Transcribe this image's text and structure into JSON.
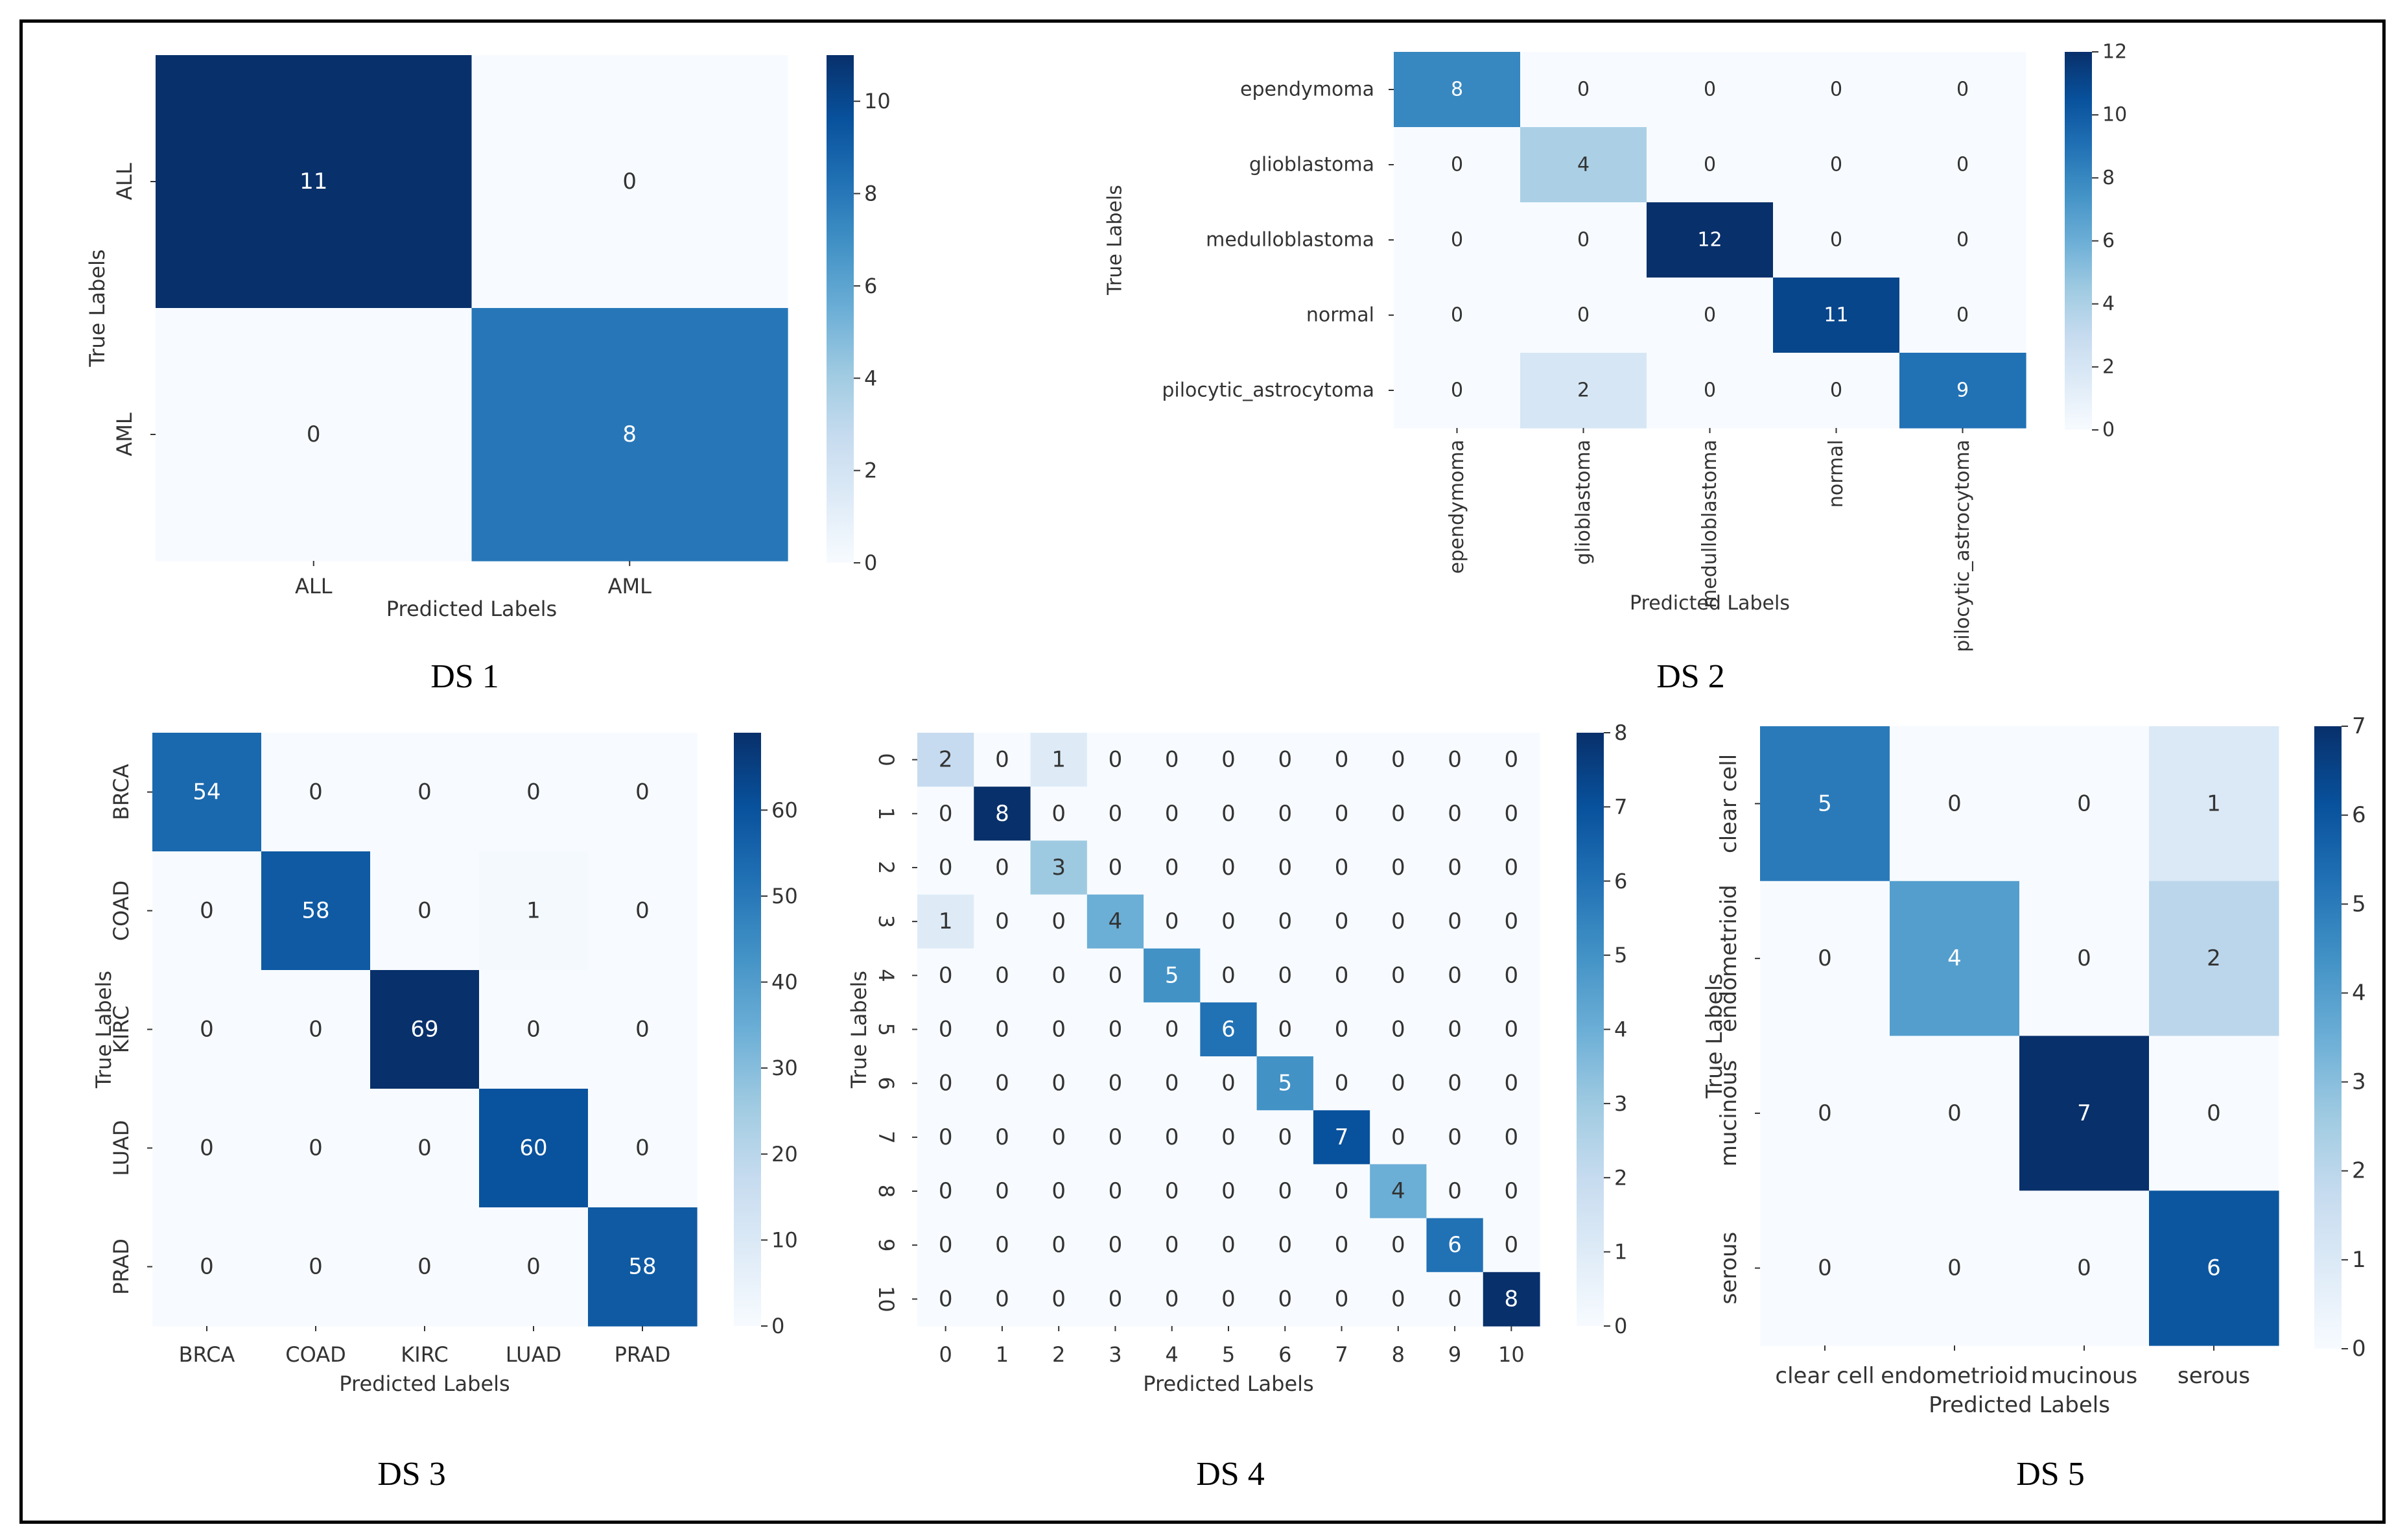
{
  "chart_data": [
    {
      "id": "ds1",
      "type": "heatmap",
      "caption": "DS 1",
      "xlabel": "Predicted Labels",
      "ylabel": "True Labels",
      "x_categories": [
        "ALL",
        "AML"
      ],
      "y_categories": [
        "ALL",
        "AML"
      ],
      "matrix": [
        [
          11,
          0
        ],
        [
          0,
          8
        ]
      ],
      "colorbar": {
        "vmin": 0,
        "vmax": 11,
        "ticks": [
          0,
          2,
          4,
          6,
          8,
          10
        ]
      },
      "x_tick_rotation": 0,
      "y_tick_rotation": -90
    },
    {
      "id": "ds2",
      "type": "heatmap",
      "caption": "DS 2",
      "xlabel": "Predicted Labels",
      "ylabel": "True Labels",
      "x_categories": [
        "ependymoma",
        "glioblastoma",
        "medulloblastoma",
        "normal",
        "pilocytic_astrocytoma"
      ],
      "y_categories": [
        "ependymoma",
        "glioblastoma",
        "medulloblastoma",
        "normal",
        "pilocytic_astrocytoma"
      ],
      "matrix": [
        [
          8,
          0,
          0,
          0,
          0
        ],
        [
          0,
          4,
          0,
          0,
          0
        ],
        [
          0,
          0,
          12,
          0,
          0
        ],
        [
          0,
          0,
          0,
          11,
          0
        ],
        [
          0,
          2,
          0,
          0,
          9
        ]
      ],
      "colorbar": {
        "vmin": 0,
        "vmax": 12,
        "ticks": [
          0,
          2,
          4,
          6,
          8,
          10,
          12
        ]
      },
      "x_tick_rotation": -90,
      "y_tick_rotation": 0
    },
    {
      "id": "ds3",
      "type": "heatmap",
      "caption": "DS 3",
      "xlabel": "Predicted Labels",
      "ylabel": "True Labels",
      "x_categories": [
        "BRCA",
        "COAD",
        "KIRC",
        "LUAD",
        "PRAD"
      ],
      "y_categories": [
        "BRCA",
        "COAD",
        "KIRC",
        "LUAD",
        "PRAD"
      ],
      "matrix": [
        [
          54,
          0,
          0,
          0,
          0
        ],
        [
          0,
          58,
          0,
          1,
          0
        ],
        [
          0,
          0,
          69,
          0,
          0
        ],
        [
          0,
          0,
          0,
          60,
          0
        ],
        [
          0,
          0,
          0,
          0,
          58
        ]
      ],
      "colorbar": {
        "vmin": 0,
        "vmax": 69,
        "ticks": [
          0,
          10,
          20,
          30,
          40,
          50,
          60
        ]
      },
      "x_tick_rotation": 0,
      "y_tick_rotation": -90
    },
    {
      "id": "ds4",
      "type": "heatmap",
      "caption": "DS 4",
      "xlabel": "Predicted Labels",
      "ylabel": "True Labels",
      "x_categories": [
        "0",
        "1",
        "2",
        "3",
        "4",
        "5",
        "6",
        "7",
        "8",
        "9",
        "10"
      ],
      "y_categories": [
        "0",
        "1",
        "2",
        "3",
        "4",
        "5",
        "6",
        "7",
        "8",
        "9",
        "10"
      ],
      "matrix": [
        [
          2,
          0,
          1,
          0,
          0,
          0,
          0,
          0,
          0,
          0,
          0
        ],
        [
          0,
          8,
          0,
          0,
          0,
          0,
          0,
          0,
          0,
          0,
          0
        ],
        [
          0,
          0,
          3,
          0,
          0,
          0,
          0,
          0,
          0,
          0,
          0
        ],
        [
          1,
          0,
          0,
          4,
          0,
          0,
          0,
          0,
          0,
          0,
          0
        ],
        [
          0,
          0,
          0,
          0,
          5,
          0,
          0,
          0,
          0,
          0,
          0
        ],
        [
          0,
          0,
          0,
          0,
          0,
          6,
          0,
          0,
          0,
          0,
          0
        ],
        [
          0,
          0,
          0,
          0,
          0,
          0,
          5,
          0,
          0,
          0,
          0
        ],
        [
          0,
          0,
          0,
          0,
          0,
          0,
          0,
          7,
          0,
          0,
          0
        ],
        [
          0,
          0,
          0,
          0,
          0,
          0,
          0,
          0,
          4,
          0,
          0
        ],
        [
          0,
          0,
          0,
          0,
          0,
          0,
          0,
          0,
          0,
          6,
          0
        ],
        [
          0,
          0,
          0,
          0,
          0,
          0,
          0,
          0,
          0,
          0,
          8
        ]
      ],
      "colorbar": {
        "vmin": 0,
        "vmax": 8,
        "ticks": [
          0,
          1,
          2,
          3,
          4,
          5,
          6,
          7,
          8
        ]
      },
      "x_tick_rotation": 0,
      "y_tick_rotation": 90
    },
    {
      "id": "ds5",
      "type": "heatmap",
      "caption": "DS 5",
      "xlabel": "Predicted Labels",
      "ylabel": "True Labels",
      "x_categories": [
        "clear cell",
        "endometrioid",
        "mucinous",
        "serous"
      ],
      "y_categories": [
        "clear cell",
        "endometrioid",
        "mucinous",
        "serous"
      ],
      "matrix": [
        [
          5,
          0,
          0,
          1
        ],
        [
          0,
          4,
          0,
          2
        ],
        [
          0,
          0,
          7,
          0
        ],
        [
          0,
          0,
          0,
          6
        ]
      ],
      "colorbar": {
        "vmin": 0,
        "vmax": 7,
        "ticks": [
          0,
          1,
          2,
          3,
          4,
          5,
          6,
          7
        ]
      },
      "x_tick_rotation": 0,
      "y_tick_rotation": -90
    }
  ]
}
